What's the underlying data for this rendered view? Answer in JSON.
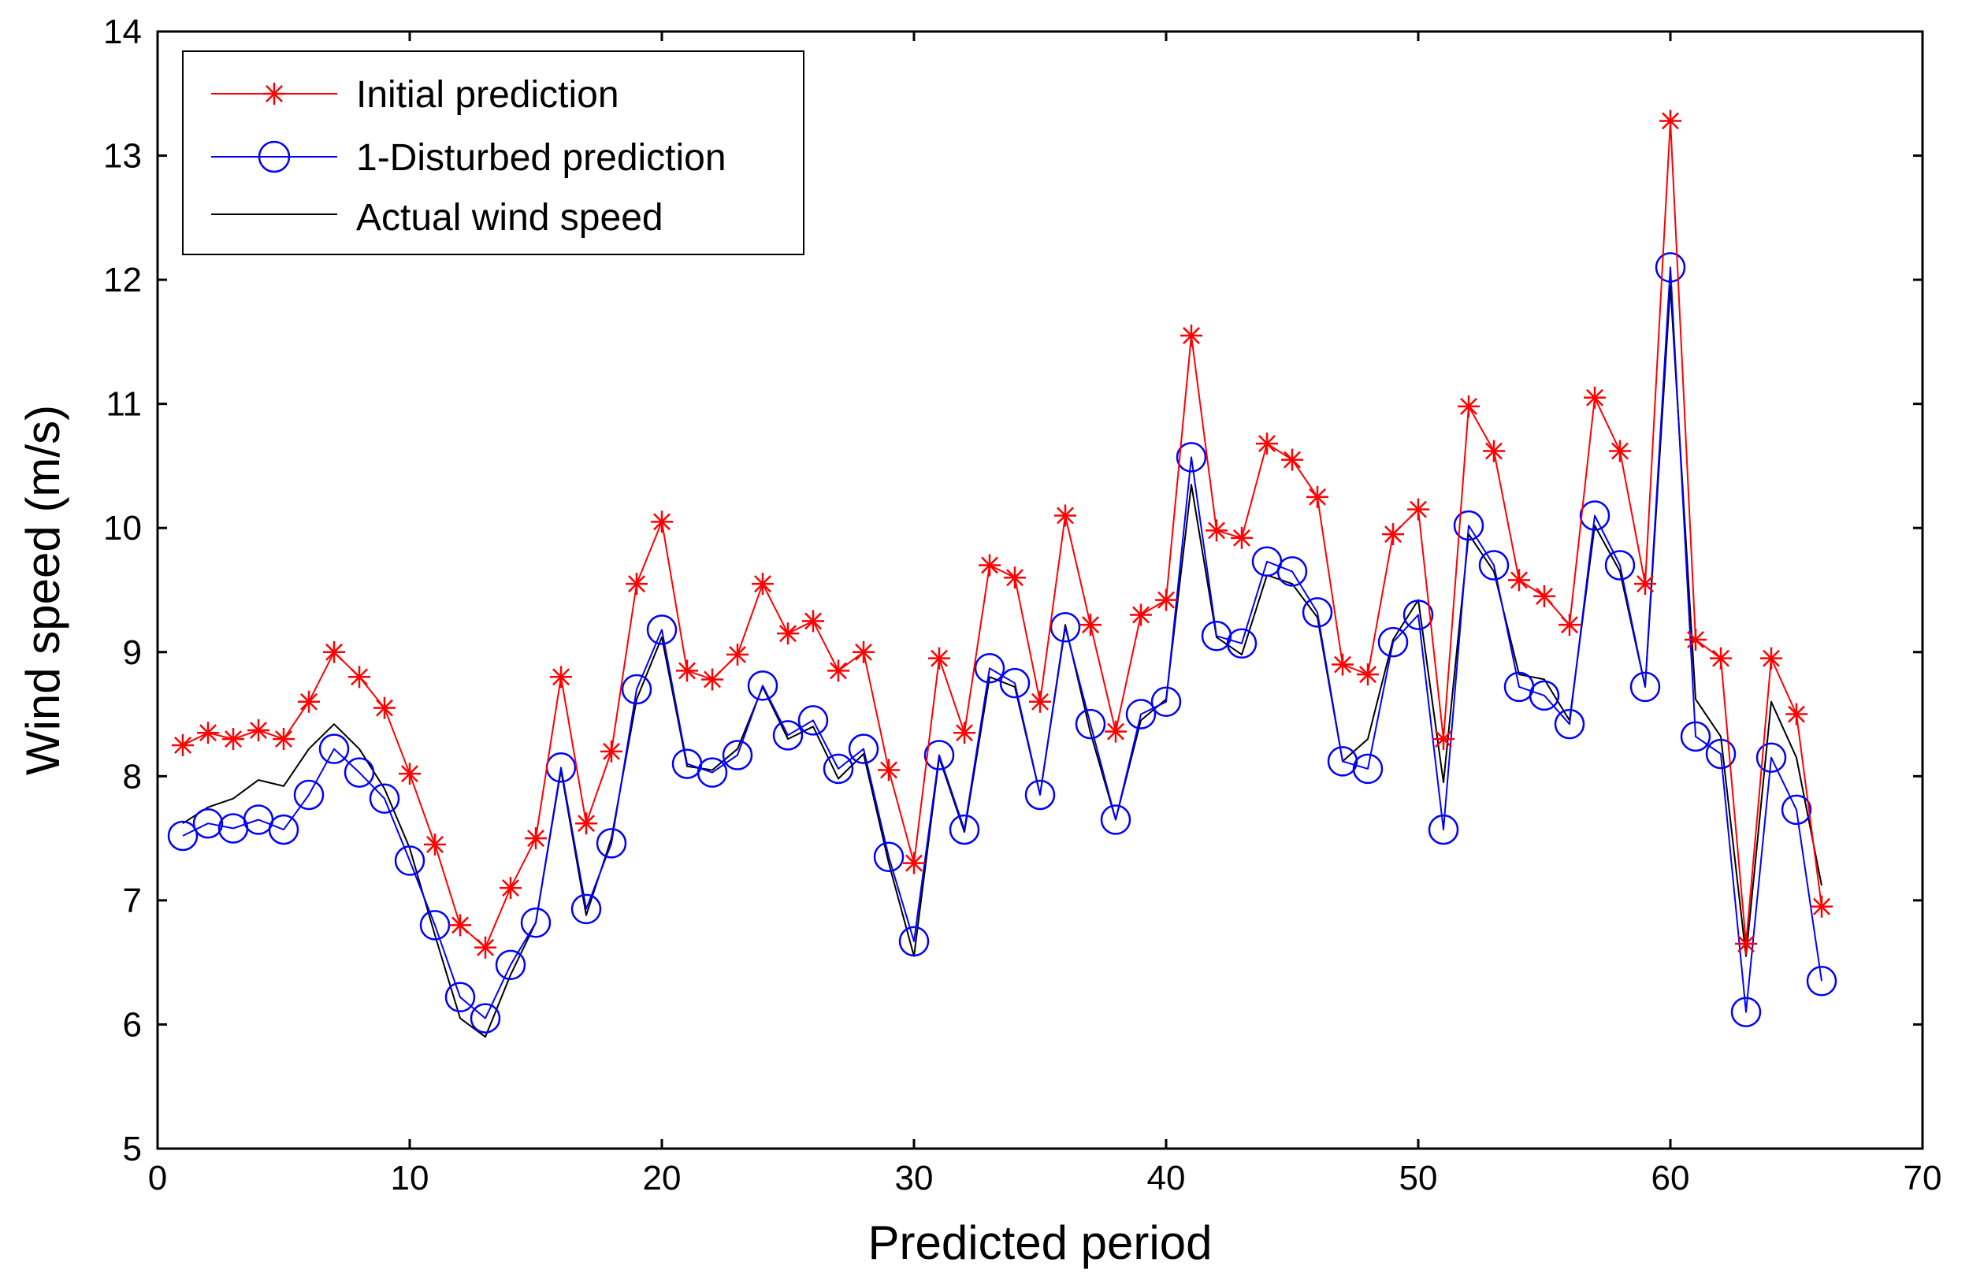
{
  "chart_data": {
    "type": "line",
    "title": "",
    "xlabel": "Predicted period",
    "ylabel": "Wind speed (m/s)",
    "xlim": [
      0,
      70
    ],
    "ylim": [
      5,
      14
    ],
    "xticks": [
      0,
      10,
      20,
      30,
      40,
      50,
      60,
      70
    ],
    "yticks": [
      5,
      6,
      7,
      8,
      9,
      10,
      11,
      12,
      13,
      14
    ],
    "xtick_labels": [
      "0",
      "10",
      "20",
      "30",
      "40",
      "50",
      "60",
      "70"
    ],
    "ytick_labels": [
      "5",
      "6",
      "7",
      "8",
      "9",
      "10",
      "11",
      "12",
      "13",
      "14"
    ],
    "grid": false,
    "legend_position": "top-left",
    "x": [
      1,
      2,
      3,
      4,
      5,
      6,
      7,
      8,
      9,
      10,
      11,
      12,
      13,
      14,
      15,
      16,
      17,
      18,
      19,
      20,
      21,
      22,
      23,
      24,
      25,
      26,
      27,
      28,
      29,
      30,
      31,
      32,
      33,
      34,
      35,
      36,
      37,
      38,
      39,
      40,
      41,
      42,
      43,
      44,
      45,
      46,
      47,
      48,
      49,
      50,
      51,
      52,
      53,
      54,
      55,
      56,
      57,
      58,
      59,
      60,
      61,
      62,
      63,
      64,
      65,
      66
    ],
    "series": [
      {
        "name": "Initial prediction",
        "color": "#ff0000",
        "marker": "star",
        "values": [
          8.25,
          8.35,
          8.3,
          8.37,
          8.3,
          8.6,
          9.0,
          8.8,
          8.55,
          8.02,
          7.45,
          6.8,
          6.62,
          7.1,
          7.5,
          8.8,
          7.62,
          8.2,
          9.55,
          10.05,
          8.85,
          8.78,
          8.98,
          9.55,
          9.15,
          9.25,
          8.85,
          9.0,
          8.05,
          7.3,
          8.95,
          8.35,
          9.7,
          9.6,
          8.6,
          10.1,
          9.22,
          8.36,
          9.3,
          9.42,
          11.55,
          9.98,
          9.92,
          10.68,
          10.55,
          10.25,
          8.9,
          8.82,
          9.95,
          10.15,
          8.3,
          10.98,
          10.62,
          9.58,
          9.45,
          9.22,
          11.05,
          10.62,
          9.55,
          13.28,
          9.1,
          8.95,
          6.65,
          8.95,
          8.5,
          6.95
        ]
      },
      {
        "name": "1-Disturbed prediction",
        "color": "#0000ff",
        "marker": "circle",
        "values": [
          7.52,
          7.62,
          7.58,
          7.65,
          7.57,
          7.85,
          8.22,
          8.03,
          7.82,
          7.32,
          6.8,
          6.22,
          6.05,
          6.48,
          6.82,
          8.07,
          6.93,
          7.46,
          8.7,
          9.18,
          8.1,
          8.03,
          8.17,
          8.73,
          8.33,
          8.45,
          8.06,
          8.22,
          7.35,
          6.67,
          8.17,
          7.57,
          8.87,
          8.75,
          7.85,
          9.2,
          8.42,
          7.65,
          8.5,
          8.6,
          10.57,
          9.13,
          9.07,
          9.73,
          9.65,
          9.32,
          8.12,
          8.06,
          9.08,
          9.3,
          7.57,
          10.02,
          9.7,
          8.72,
          8.65,
          8.42,
          10.1,
          9.7,
          8.72,
          12.1,
          8.32,
          8.18,
          6.1,
          8.15,
          7.73,
          6.35
        ]
      },
      {
        "name": "Actual wind speed",
        "color": "#000000",
        "marker": "none",
        "values": [
          7.62,
          7.75,
          7.82,
          7.97,
          7.92,
          8.22,
          8.42,
          8.22,
          7.9,
          7.42,
          6.72,
          6.05,
          5.9,
          6.4,
          6.82,
          8.05,
          6.88,
          7.5,
          8.62,
          9.12,
          8.08,
          8.05,
          8.22,
          8.72,
          8.3,
          8.4,
          7.98,
          8.18,
          7.3,
          6.55,
          8.15,
          7.55,
          8.8,
          8.72,
          7.85,
          9.22,
          8.35,
          7.65,
          8.45,
          8.62,
          10.35,
          9.12,
          8.98,
          9.62,
          9.55,
          9.28,
          8.12,
          8.3,
          9.1,
          9.42,
          7.95,
          9.95,
          9.65,
          8.82,
          8.78,
          8.45,
          10.02,
          9.65,
          8.72,
          11.95,
          8.62,
          8.32,
          6.55,
          8.6,
          8.15,
          7.12
        ]
      }
    ]
  }
}
